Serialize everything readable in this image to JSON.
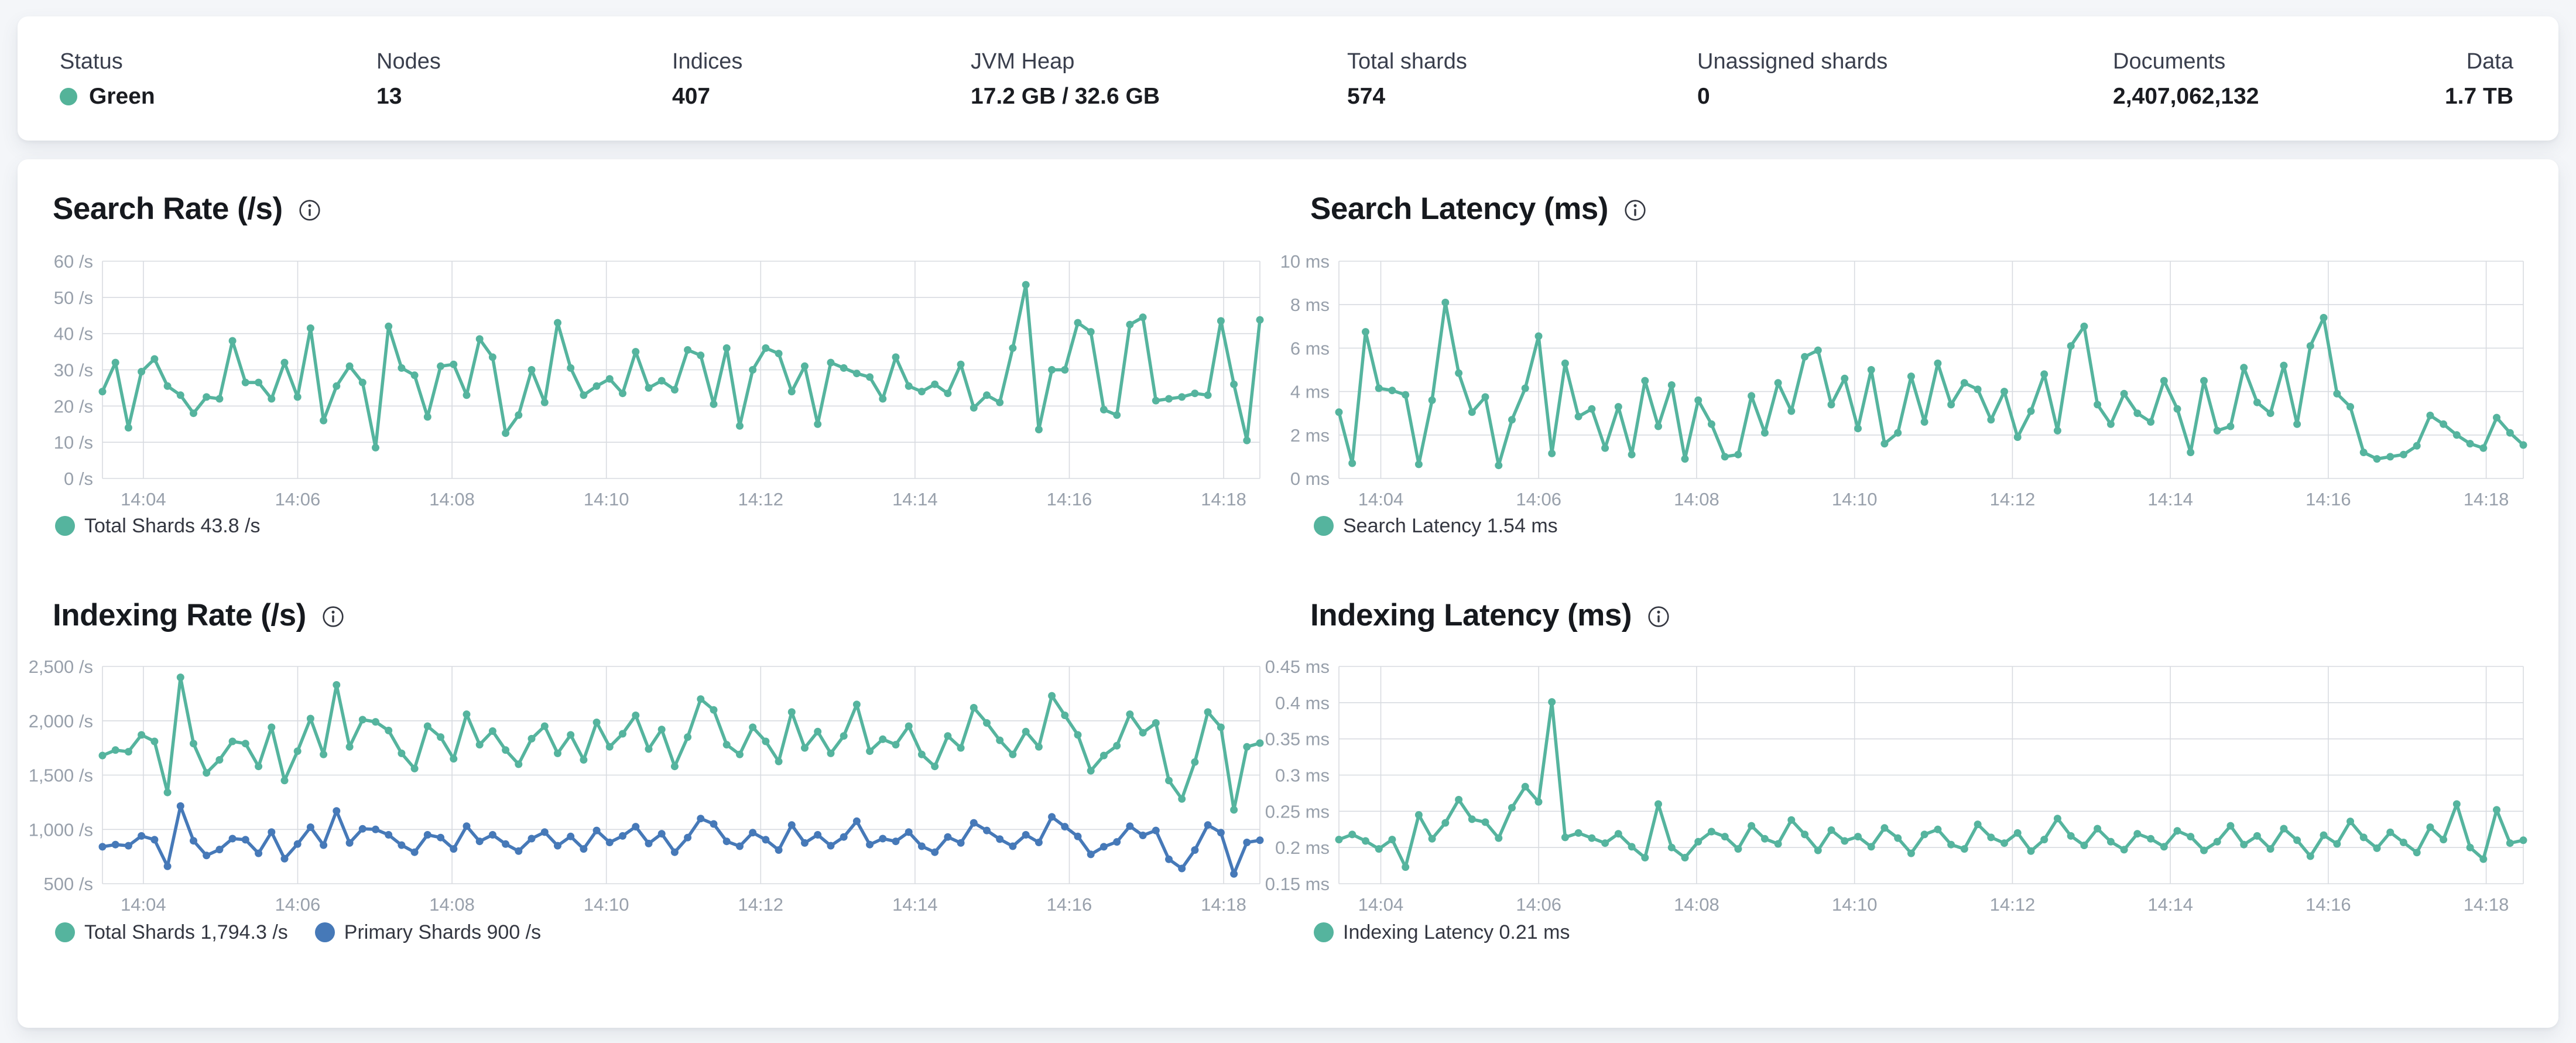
{
  "colors": {
    "teal": "#55B49E",
    "blue": "#4679B8",
    "health_green": "#54B399",
    "grid": "#D8DBE0",
    "axis_text": "#98A0AB",
    "title_text": "#16191E",
    "legend_text": "#343741"
  },
  "summary": {
    "items": [
      {
        "label": "Status",
        "value": "Green"
      },
      {
        "label": "Nodes",
        "value": "13"
      },
      {
        "label": "Indices",
        "value": "407"
      },
      {
        "label": "JVM Heap",
        "value": "17.2 GB / 32.6 GB"
      },
      {
        "label": "Total shards",
        "value": "574"
      },
      {
        "label": "Unassigned shards",
        "value": "0"
      },
      {
        "label": "Documents",
        "value": "2,407,062,132"
      },
      {
        "label": "Data",
        "value": "1.7 TB"
      }
    ]
  },
  "chart_data": [
    {
      "type": "line",
      "title": "Search Rate (/s)",
      "info_icon": "info-icon",
      "y_min": 0,
      "y_max": 60,
      "y_ticks": [
        {
          "label": "60 /s",
          "value": 60
        },
        {
          "label": "50 /s",
          "value": 50
        },
        {
          "label": "40 /s",
          "value": 40
        },
        {
          "label": "30 /s",
          "value": 30
        },
        {
          "label": "20 /s",
          "value": 20
        },
        {
          "label": "10 /s",
          "value": 10
        },
        {
          "label": "0 /s",
          "value": 0
        }
      ],
      "x_ticks": [
        "14:04",
        "14:06",
        "14:08",
        "14:10",
        "14:12",
        "14:14",
        "14:16",
        "14:18"
      ],
      "grid": true,
      "legend_position": "bottom",
      "series": [
        {
          "name": "Total Shards",
          "legend_label": "Total Shards 43.8 /s",
          "color": "#55B49E",
          "values": [
            24,
            32,
            14,
            29.5,
            33,
            25.5,
            23,
            18,
            22.5,
            22,
            38,
            26.5,
            26.5,
            22,
            32,
            22.5,
            41.5,
            16,
            25.5,
            31,
            26.5,
            8.5,
            42,
            30.5,
            28.5,
            17,
            31,
            31.5,
            23,
            38.5,
            33.5,
            12.5,
            17.5,
            30,
            21,
            43,
            30.5,
            23,
            25.5,
            27.5,
            23.5,
            35,
            25,
            27,
            24.5,
            35.5,
            34,
            20.5,
            36,
            14.5,
            30,
            36,
            34.5,
            24,
            31,
            15,
            32,
            30.5,
            29,
            28,
            22,
            33.5,
            25.5,
            24,
            26,
            23.5,
            31.5,
            19.5,
            23,
            21,
            36,
            53.5,
            13.5,
            30,
            30,
            43,
            40.5,
            19,
            17.5,
            42.5,
            44.5,
            21.5,
            22,
            22.5,
            23.5,
            23,
            43.5,
            26,
            10.5,
            43.8
          ]
        }
      ]
    },
    {
      "type": "line",
      "title": "Search Latency (ms)",
      "info_icon": "info-icon",
      "y_min": 0,
      "y_max": 10,
      "y_ticks": [
        {
          "label": "10 ms",
          "value": 10
        },
        {
          "label": "8 ms",
          "value": 8
        },
        {
          "label": "6 ms",
          "value": 6
        },
        {
          "label": "4 ms",
          "value": 4
        },
        {
          "label": "2 ms",
          "value": 2
        },
        {
          "label": "0 ms",
          "value": 0
        }
      ],
      "x_ticks": [
        "14:04",
        "14:06",
        "14:08",
        "14:10",
        "14:12",
        "14:14",
        "14:16",
        "14:18"
      ],
      "grid": true,
      "legend_position": "bottom",
      "series": [
        {
          "name": "Search Latency",
          "legend_label": "Search Latency 1.54 ms",
          "color": "#55B49E",
          "values": [
            3.05,
            0.7,
            6.75,
            4.15,
            4.05,
            3.85,
            0.65,
            3.6,
            8.1,
            4.85,
            3.05,
            3.75,
            0.6,
            2.7,
            4.15,
            6.55,
            1.15,
            5.3,
            2.85,
            3.2,
            1.4,
            3.3,
            1.1,
            4.5,
            2.4,
            4.3,
            0.9,
            3.6,
            2.5,
            1.0,
            1.1,
            3.8,
            2.1,
            4.4,
            3.1,
            5.6,
            5.9,
            3.4,
            4.6,
            2.3,
            5.0,
            1.6,
            2.1,
            4.7,
            2.6,
            5.3,
            3.4,
            4.4,
            4.1,
            2.7,
            4.0,
            1.9,
            3.1,
            4.8,
            2.2,
            6.1,
            7.0,
            3.4,
            2.5,
            3.9,
            3.0,
            2.6,
            4.5,
            3.2,
            1.2,
            4.5,
            2.2,
            2.4,
            5.1,
            3.5,
            3.0,
            5.2,
            2.5,
            6.1,
            7.4,
            3.9,
            3.3,
            1.2,
            0.9,
            1.0,
            1.1,
            1.5,
            2.9,
            2.5,
            2.0,
            1.6,
            1.4,
            2.8,
            2.1,
            1.54
          ]
        }
      ]
    },
    {
      "type": "line",
      "title": "Indexing Rate (/s)",
      "info_icon": "info-icon",
      "y_min": 500,
      "y_max": 2500,
      "y_ticks": [
        {
          "label": "2,500 /s",
          "value": 2500
        },
        {
          "label": "2,000 /s",
          "value": 2000
        },
        {
          "label": "1,500 /s",
          "value": 1500
        },
        {
          "label": "1,000 /s",
          "value": 1000
        },
        {
          "label": "500 /s",
          "value": 500
        }
      ],
      "x_ticks": [
        "14:04",
        "14:06",
        "14:08",
        "14:10",
        "14:12",
        "14:14",
        "14:16",
        "14:18"
      ],
      "grid": true,
      "legend_position": "bottom",
      "series": [
        {
          "name": "Total Shards",
          "legend_label": "Total Shards 1,794.3 /s",
          "color": "#55B49E",
          "values": [
            1680,
            1730,
            1715,
            1870,
            1810,
            1340,
            2400,
            1790,
            1520,
            1640,
            1810,
            1790,
            1580,
            1940,
            1450,
            1720,
            2020,
            1690,
            2330,
            1760,
            2010,
            1990,
            1910,
            1700,
            1560,
            1950,
            1850,
            1650,
            2060,
            1780,
            1905,
            1730,
            1600,
            1835,
            1950,
            1700,
            1870,
            1640,
            1985,
            1760,
            1880,
            2050,
            1740,
            1920,
            1580,
            1850,
            2200,
            2100,
            1780,
            1690,
            1940,
            1810,
            1625,
            2080,
            1750,
            1900,
            1700,
            1860,
            2150,
            1720,
            1830,
            1780,
            1950,
            1690,
            1580,
            1860,
            1750,
            2120,
            1980,
            1820,
            1690,
            1900,
            1760,
            2230,
            2050,
            1870,
            1540,
            1680,
            1770,
            2060,
            1890,
            1980,
            1450,
            1280,
            1620,
            2080,
            1940,
            1180,
            1760,
            1794.3
          ]
        },
        {
          "name": "Primary Shards",
          "legend_label": "Primary Shards 900 /s",
          "color": "#4679B8",
          "values": [
            840,
            860,
            850,
            940,
            905,
            660,
            1215,
            895,
            760,
            815,
            915,
            905,
            780,
            975,
            730,
            865,
            1020,
            855,
            1170,
            875,
            1005,
            1000,
            950,
            855,
            790,
            950,
            925,
            820,
            1030,
            890,
            950,
            865,
            800,
            915,
            975,
            850,
            935,
            820,
            990,
            880,
            940,
            1025,
            870,
            960,
            790,
            925,
            1100,
            1050,
            890,
            845,
            970,
            905,
            810,
            1040,
            875,
            950,
            850,
            930,
            1075,
            860,
            915,
            890,
            975,
            845,
            790,
            930,
            875,
            1060,
            990,
            910,
            845,
            950,
            880,
            1115,
            1025,
            935,
            770,
            840,
            885,
            1030,
            945,
            990,
            725,
            640,
            810,
            1040,
            970,
            590,
            880,
            900
          ]
        }
      ]
    },
    {
      "type": "line",
      "title": "Indexing Latency (ms)",
      "info_icon": "info-icon",
      "y_min": 0.15,
      "y_max": 0.45,
      "y_ticks": [
        {
          "label": "0.45 ms",
          "value": 0.45
        },
        {
          "label": "0.4 ms",
          "value": 0.4
        },
        {
          "label": "0.35 ms",
          "value": 0.35
        },
        {
          "label": "0.3 ms",
          "value": 0.3
        },
        {
          "label": "0.25 ms",
          "value": 0.25
        },
        {
          "label": "0.2 ms",
          "value": 0.2
        },
        {
          "label": "0.15 ms",
          "value": 0.15
        }
      ],
      "x_ticks": [
        "14:04",
        "14:06",
        "14:08",
        "14:10",
        "14:12",
        "14:14",
        "14:16",
        "14:18"
      ],
      "grid": true,
      "legend_position": "bottom",
      "series": [
        {
          "name": "Indexing Latency",
          "legend_label": "Indexing Latency 0.21 ms",
          "color": "#55B49E",
          "values": [
            0.211,
            0.218,
            0.209,
            0.198,
            0.211,
            0.173,
            0.245,
            0.212,
            0.234,
            0.266,
            0.239,
            0.235,
            0.213,
            0.255,
            0.284,
            0.263,
            0.401,
            0.214,
            0.22,
            0.213,
            0.206,
            0.219,
            0.201,
            0.186,
            0.26,
            0.2,
            0.186,
            0.208,
            0.222,
            0.215,
            0.198,
            0.23,
            0.212,
            0.205,
            0.238,
            0.218,
            0.196,
            0.224,
            0.209,
            0.215,
            0.201,
            0.227,
            0.213,
            0.192,
            0.218,
            0.225,
            0.204,
            0.198,
            0.232,
            0.214,
            0.206,
            0.22,
            0.195,
            0.211,
            0.24,
            0.216,
            0.203,
            0.226,
            0.208,
            0.197,
            0.219,
            0.212,
            0.201,
            0.223,
            0.215,
            0.196,
            0.208,
            0.23,
            0.204,
            0.216,
            0.198,
            0.226,
            0.21,
            0.188,
            0.217,
            0.205,
            0.236,
            0.214,
            0.199,
            0.221,
            0.207,
            0.193,
            0.228,
            0.211,
            0.26,
            0.2,
            0.184,
            0.252,
            0.206,
            0.21
          ]
        }
      ]
    }
  ]
}
